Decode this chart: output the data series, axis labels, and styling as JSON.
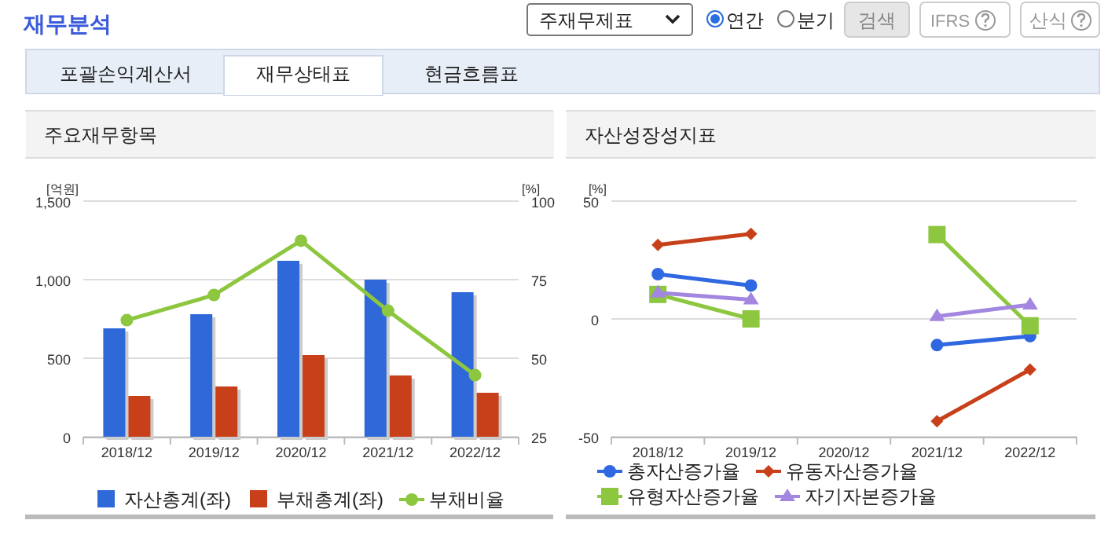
{
  "chart_data": [
    {
      "type": "other",
      "title": "재무분석",
      "annotations": [
        "주재무제표",
        "연간",
        "분기",
        "검색",
        "IFRS",
        "산식",
        "포괄손익계산서",
        "재무상태표",
        "현금흐름표"
      ]
    },
    {
      "type": "bar",
      "title": "주요재무항목",
      "ylabel": "[억원]",
      "y2label": "[%]",
      "categories": [
        "2018/12",
        "2019/12",
        "2020/12",
        "2021/12",
        "2022/12"
      ],
      "ylim": [
        0,
        1500
      ],
      "yticks": [
        0,
        500,
        {
          "value": 1000,
          "label": "1,000"
        },
        {
          "value": 1500,
          "label": "1,500"
        }
      ],
      "y2lim": [
        25,
        100
      ],
      "y2ticks": [
        25,
        50,
        75,
        100
      ],
      "grid": "y",
      "legend": "bottom",
      "series": [
        {
          "name": "자산총계(좌)",
          "color": "#2f68d8",
          "values": [
            690,
            780,
            1120,
            1000,
            920
          ]
        },
        {
          "name": "부채총계(좌)",
          "color": "#c8401a",
          "values": [
            260,
            320,
            520,
            390,
            280
          ]
        },
        {
          "name": "부채비율",
          "type": "line",
          "axis": "y2",
          "color": "#8dc63f",
          "marker": "circle",
          "values": [
            62.1,
            70.1,
            87.4,
            65.1,
            44.6
          ]
        }
      ]
    },
    {
      "type": "line",
      "title": "자산성장성지표",
      "ylabel": "[%]",
      "categories": [
        "2018/12",
        "2019/12",
        "2020/12",
        "2021/12",
        "2022/12"
      ],
      "ylim": [
        -50,
        50
      ],
      "yticks": [
        -50,
        0,
        50
      ],
      "grid": "y",
      "legend": "bottom",
      "series": [
        {
          "name": "총자산증가율",
          "color": "#2f68e0",
          "marker": "circle",
          "values": [
            19.0,
            14.2,
            null,
            -11.1,
            -7.3
          ]
        },
        {
          "name": "유동자산증가율",
          "color": "#c8401a",
          "marker": "diamond",
          "values": [
            31.4,
            36.1,
            null,
            -43.4,
            -21.5
          ]
        },
        {
          "name": "유형자산증가율",
          "color": "#8dc63f",
          "marker": "square",
          "values": [
            10.4,
            0,
            null,
            35.8,
            -2.9
          ]
        },
        {
          "name": "자기자본증가율",
          "color": "#a386e0",
          "marker": "triangle",
          "values": [
            11.1,
            8.2,
            null,
            1.1,
            6.0
          ]
        }
      ]
    }
  ]
}
